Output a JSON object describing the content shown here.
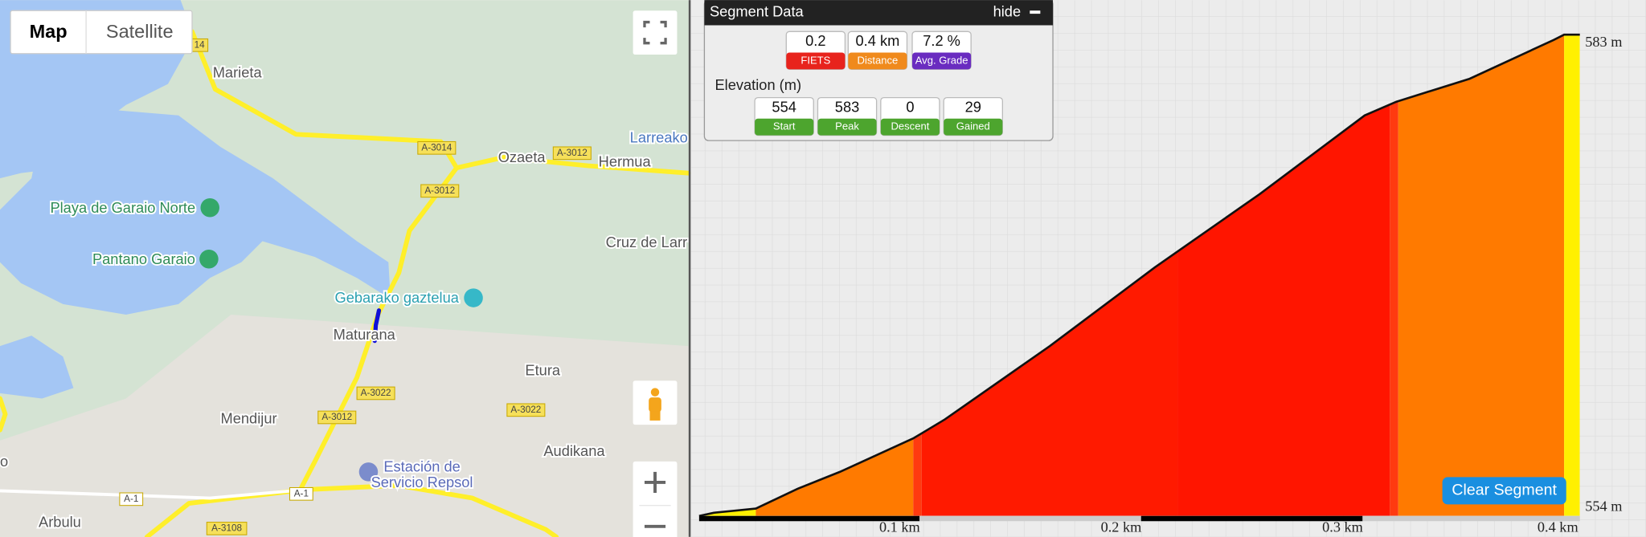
{
  "map": {
    "buttons": [
      "Map",
      "Satellite"
    ],
    "places": [
      "Marieta",
      "Playa de Garaio Norte",
      "Pantano Garaio",
      "Gebarako gaztelua",
      "Maturana",
      "Etura",
      "Mendijur",
      "Estación de",
      "Servicio Repsol",
      "Audikana",
      "Arbulu",
      "Ozaeta",
      "Hermua",
      "Larreako",
      "Cruz de Larr",
      "o"
    ],
    "roads": [
      "14",
      "A-3014",
      "A-3012",
      "A-3012",
      "A-3022",
      "A-3012",
      "A-3022",
      "A-1",
      "A-1",
      "A-3108"
    ]
  },
  "segment_data": {
    "title": "Segment Data",
    "hide": "hide",
    "stats": [
      {
        "value": 0.2,
        "label": "FIETS"
      },
      {
        "value": "0.4 km",
        "label": "Distance"
      },
      {
        "value": "7.2 %",
        "label": "Avg. Grade"
      }
    ],
    "elevation_title": "Elevation (m)",
    "elevation": [
      {
        "value": 554,
        "label": "Start"
      },
      {
        "value": 583,
        "label": "Peak"
      },
      {
        "value": 0,
        "label": "Descent"
      },
      {
        "value": 29,
        "label": "Gained"
      }
    ]
  },
  "profile": {
    "max_label": "583 m",
    "min_label": "554 m",
    "x_labels": [
      "0.1 km",
      "0.2 km",
      "0.3 km",
      "0.4 km"
    ]
  },
  "clear_button": "Clear Segment"
}
